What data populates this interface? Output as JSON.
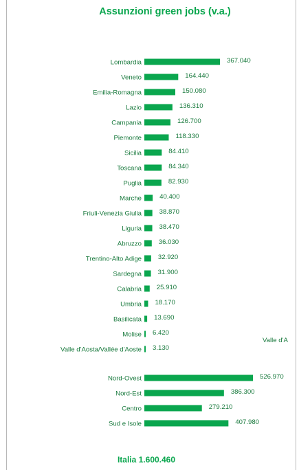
{
  "colors": {
    "accent": "#0aa64e",
    "text": "#1a7a3e",
    "frame": "#b8b8b8"
  },
  "chart_data": {
    "type": "bar",
    "orientation": "horizontal",
    "title": "Assunzioni green jobs (v.a.)",
    "regions": {
      "categories": [
        "Lombardia",
        "Veneto",
        "Emilia-Romagna",
        "Lazio",
        "Campania",
        "Piemonte",
        "Sicilia",
        "Toscana",
        "Puglia",
        "Marche",
        "Friuli-Venezia Giulia",
        "Liguria",
        "Abruzzo",
        "Trentino-Alto Adige",
        "Sardegna",
        "Calabria",
        "Umbria",
        "Basilicata",
        "Molise",
        "Valle d'Aosta/Vallée d'Aoste"
      ],
      "values": [
        367040,
        164440,
        150080,
        136310,
        126700,
        118330,
        84410,
        84340,
        82930,
        40400,
        38870,
        38470,
        36030,
        32920,
        31900,
        25910,
        18170,
        13690,
        6420,
        3130
      ],
      "value_labels": [
        "367.040",
        "164.440",
        "150.080",
        "136.310",
        "126.700",
        "118.330",
        "84.410",
        "84.340",
        "82.930",
        "40.400",
        "38.870",
        "38.470",
        "36.030",
        "32.920",
        "31.900",
        "25.910",
        "18.170",
        "13.690",
        "6.420",
        "3.130"
      ]
    },
    "macro_areas": {
      "categories": [
        "Nord-Ovest",
        "Nord-Est",
        "Centro",
        "Sud e Isole"
      ],
      "values": [
        526970,
        386300,
        279210,
        407980
      ],
      "value_labels": [
        "526.970",
        "386.300",
        "279.210",
        "407.980"
      ]
    },
    "clipped_label": "Valle d'A",
    "total_label": "Italia 1.600.460"
  }
}
